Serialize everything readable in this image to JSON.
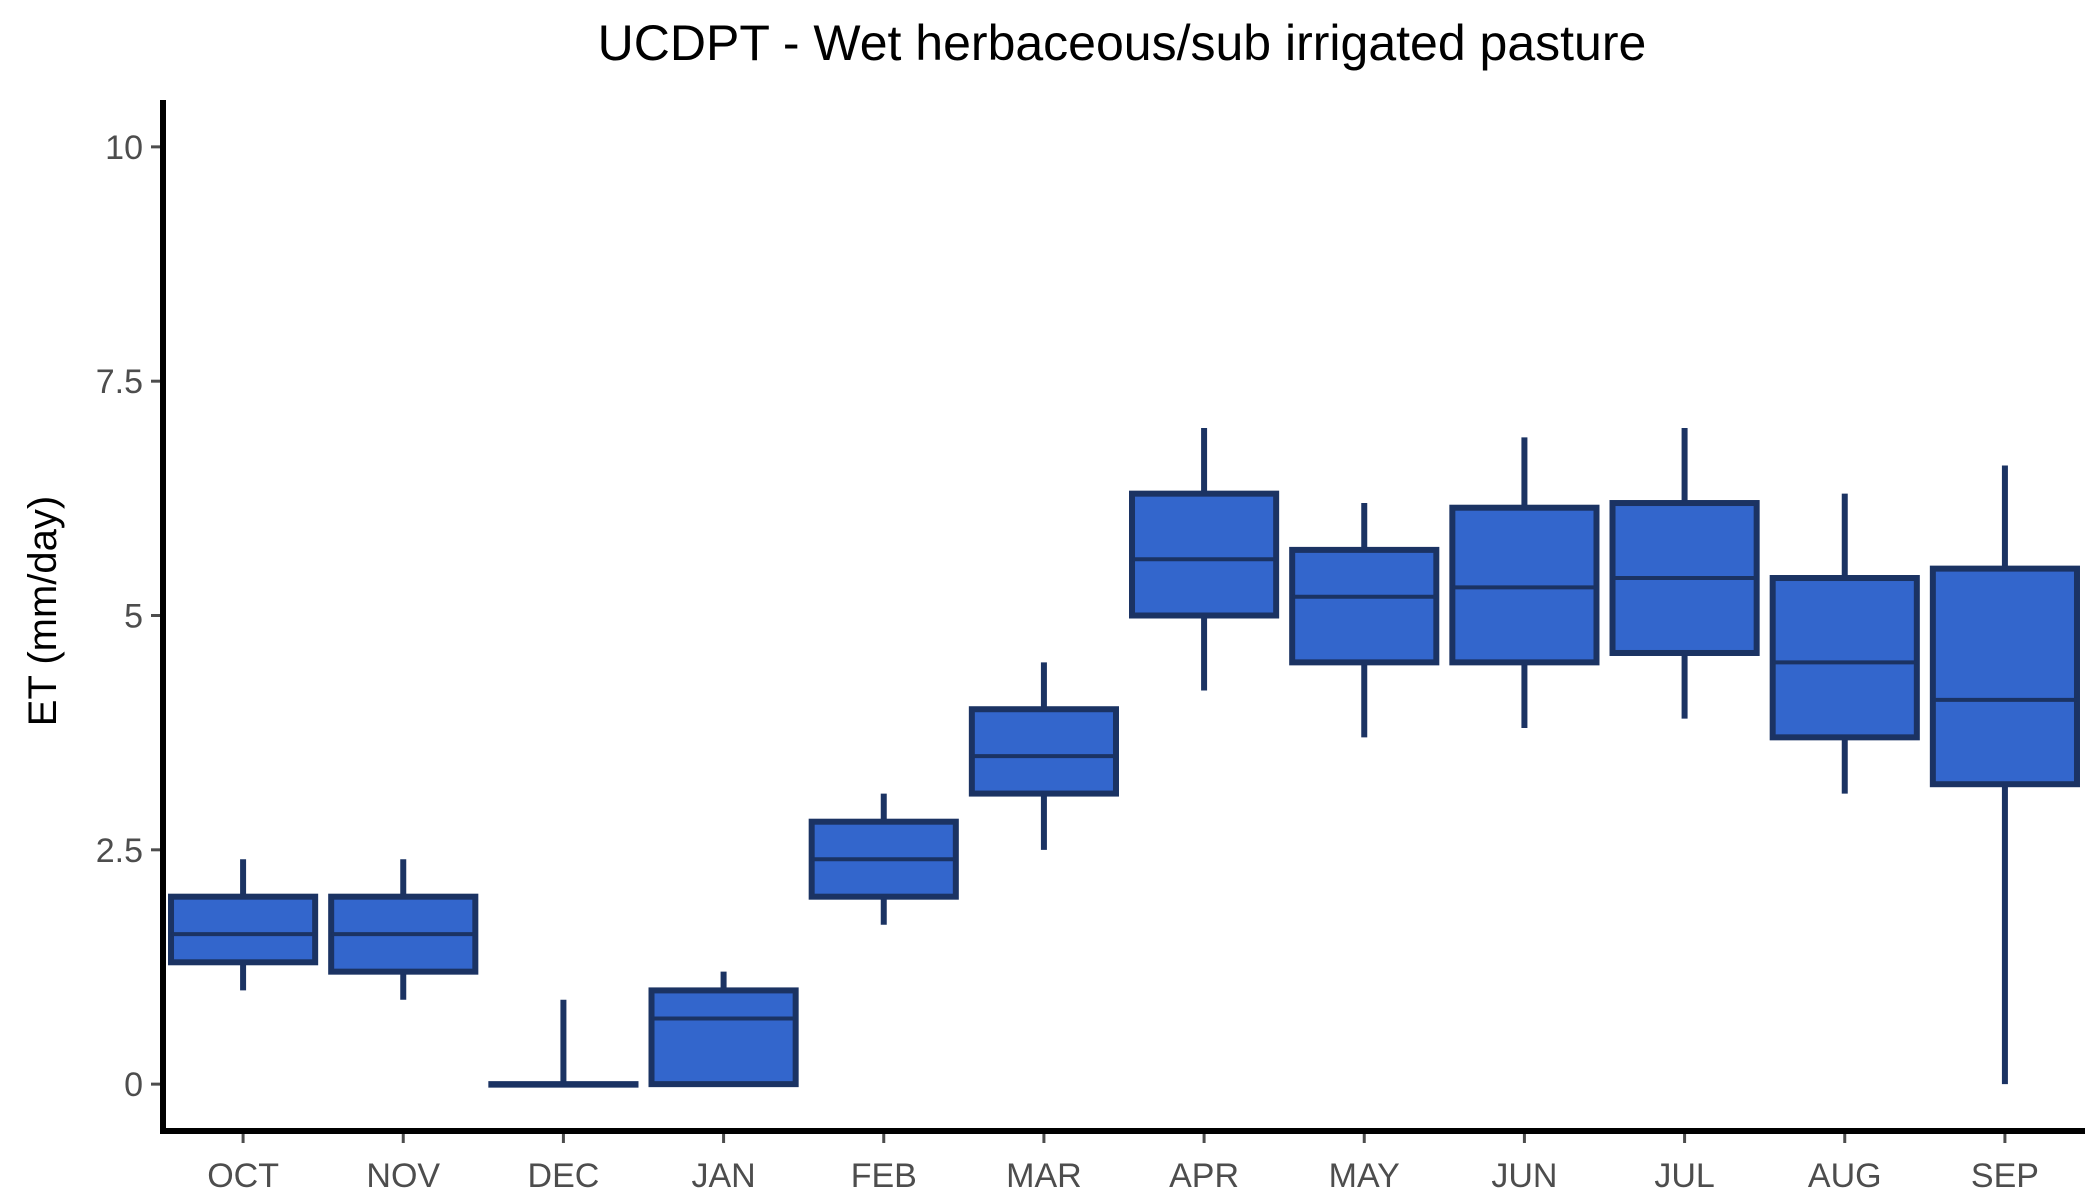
{
  "chart_data": {
    "type": "boxplot",
    "title": "UCDPT - Wet herbaceous/sub irrigated pasture",
    "xlabel": "",
    "ylabel": "ET (mm/day)",
    "ylim": [
      -0.5,
      10.5
    ],
    "yticks": [
      0,
      2.5,
      5,
      7.5,
      10
    ],
    "ytick_labels": [
      "0",
      "2.5",
      "5",
      "7.5",
      "10"
    ],
    "grid": false,
    "legend": "none",
    "categories": [
      "OCT",
      "NOV",
      "DEC",
      "JAN",
      "FEB",
      "MAR",
      "APR",
      "MAY",
      "JUN",
      "JUL",
      "AUG",
      "SEP"
    ],
    "boxes": [
      {
        "min": 1.0,
        "q1": 1.3,
        "median": 1.6,
        "q3": 2.0,
        "max": 2.4
      },
      {
        "min": 0.9,
        "q1": 1.2,
        "median": 1.6,
        "q3": 2.0,
        "max": 2.4
      },
      {
        "min": 0.0,
        "q1": 0.0,
        "median": 0.0,
        "q3": 0.0,
        "max": 0.9
      },
      {
        "min": 0.0,
        "q1": 0.0,
        "median": 0.7,
        "q3": 1.0,
        "max": 1.2
      },
      {
        "min": 1.7,
        "q1": 2.0,
        "median": 2.4,
        "q3": 2.8,
        "max": 3.1
      },
      {
        "min": 2.5,
        "q1": 3.1,
        "median": 3.5,
        "q3": 4.0,
        "max": 4.5
      },
      {
        "min": 4.2,
        "q1": 5.0,
        "median": 5.6,
        "q3": 6.3,
        "max": 7.0
      },
      {
        "min": 3.7,
        "q1": 4.5,
        "median": 5.2,
        "q3": 5.7,
        "max": 6.2
      },
      {
        "min": 3.8,
        "q1": 4.5,
        "median": 5.3,
        "q3": 6.15,
        "max": 6.9
      },
      {
        "min": 3.9,
        "q1": 4.6,
        "median": 5.4,
        "q3": 6.2,
        "max": 7.0
      },
      {
        "min": 3.1,
        "q1": 3.7,
        "median": 4.5,
        "q3": 5.4,
        "max": 6.3
      },
      {
        "min": 0.0,
        "q1": 3.2,
        "median": 4.1,
        "q3": 5.5,
        "max": 6.6
      }
    ],
    "colors": {
      "box_fill": "#3366CC",
      "box_outline": "#1B3363",
      "axis": "#000000",
      "tick_label": "#4d4d4d"
    }
  }
}
